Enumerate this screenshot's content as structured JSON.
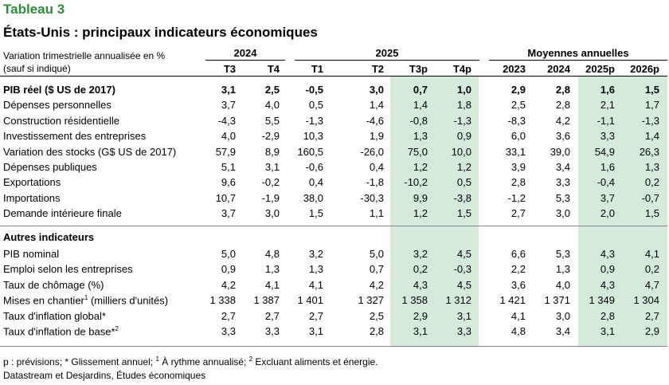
{
  "title": "Tableau 3",
  "subtitle": "États-Unis : principaux indicateurs économiques",
  "header_note_line1": "Variation trimestrielle annualisée en %",
  "header_note_line2": "(sauf si indiqué)",
  "groups": {
    "y2024": "2024",
    "y2025": "2025",
    "annual": "Moyennes annuelles"
  },
  "columns": [
    "T3",
    "T4",
    "T1",
    "T2",
    "T3p",
    "T4p",
    "2023",
    "2024",
    "2025p",
    "2026p"
  ],
  "section_other": "Autres indicateurs",
  "rows": [
    {
      "label": "PIB réel ($ US de 2017)",
      "bold": true,
      "values": [
        "3,1",
        "2,5",
        "-0,5",
        "3,0",
        "0,7",
        "1,0",
        "2,9",
        "2,8",
        "1,6",
        "1,5"
      ]
    },
    {
      "label": "Dépenses personnelles",
      "values": [
        "3,7",
        "4,0",
        "0,5",
        "1,4",
        "1,4",
        "1,8",
        "2,5",
        "2,8",
        "2,1",
        "1,7"
      ]
    },
    {
      "label": "Construction résidentielle",
      "values": [
        "-4,3",
        "5,5",
        "-1,3",
        "-4,6",
        "-0,8",
        "-1,3",
        "-8,3",
        "4,2",
        "-1,1",
        "-1,3"
      ]
    },
    {
      "label": "Investissement des entreprises",
      "values": [
        "4,0",
        "-2,9",
        "10,3",
        "1,9",
        "1,3",
        "0,9",
        "6,0",
        "3,6",
        "3,3",
        "1,4"
      ]
    },
    {
      "label": "Variation des stocks (G$ US de 2017)",
      "values": [
        "57,9",
        "8,9",
        "160,5",
        "-26,0",
        "75,0",
        "10,0",
        "33,1",
        "39,0",
        "54,9",
        "26,3"
      ]
    },
    {
      "label": "Dépenses publiques",
      "values": [
        "5,1",
        "3,1",
        "-0,6",
        "0,4",
        "1,2",
        "1,2",
        "3,9",
        "3,4",
        "1,6",
        "1,3"
      ]
    },
    {
      "label": "Exportations",
      "values": [
        "9,6",
        "-0,2",
        "0,4",
        "-1,8",
        "-10,2",
        "0,5",
        "2,8",
        "3,3",
        "-0,4",
        "0,2"
      ]
    },
    {
      "label": "Importations",
      "values": [
        "10,7",
        "-1,9",
        "38,0",
        "-30,3",
        "9,9",
        "-3,8",
        "-1,2",
        "5,3",
        "3,7",
        "-0,7"
      ]
    },
    {
      "label": "Demande intérieure finale",
      "values": [
        "3,7",
        "3,0",
        "1,5",
        "1,1",
        "1,2",
        "1,5",
        "2,7",
        "3,0",
        "2,0",
        "1,5"
      ]
    }
  ],
  "other_rows": [
    {
      "label": "PIB nominal",
      "values": [
        "5,0",
        "4,8",
        "3,2",
        "5,0",
        "3,2",
        "4,5",
        "6,6",
        "5,3",
        "4,3",
        "4,1"
      ]
    },
    {
      "label": "Emploi selon les entreprises",
      "values": [
        "0,9",
        "1,3",
        "1,3",
        "0,7",
        "0,2",
        "-0,3",
        "2,2",
        "1,3",
        "0,9",
        "0,2"
      ]
    },
    {
      "label": "Taux de chômage (%)",
      "values": [
        "4,2",
        "4,1",
        "4,1",
        "4,2",
        "4,3",
        "4,5",
        "3,6",
        "4,0",
        "4,3",
        "4,7"
      ]
    },
    {
      "label": "Mises en chantier",
      "sup": "1",
      "label_suffix": " (milliers d'unités)",
      "values": [
        "1 338",
        "1 387",
        "1 401",
        "1 327",
        "1 358",
        "1 312",
        "1 421",
        "1 371",
        "1 349",
        "1 304"
      ]
    },
    {
      "label": "Taux d'inflation global*",
      "values": [
        "2,7",
        "2,7",
        "2,7",
        "2,5",
        "2,9",
        "3,1",
        "4,1",
        "3,0",
        "2,8",
        "2,7"
      ]
    },
    {
      "label": "Taux d'inflation de base*",
      "sup": "2",
      "label_suffix": "",
      "values": [
        "3,3",
        "3,3",
        "3,1",
        "2,8",
        "3,1",
        "3,3",
        "4,8",
        "3,4",
        "3,1",
        "2,9"
      ]
    }
  ],
  "footnote": {
    "part1": "p : prévisions; * Glissement annuel; ",
    "sup1": "1",
    "part2": " À rythme annualisé; ",
    "sup2": "2",
    "part3": " Excluant aliments et énergie."
  },
  "source": "Datastream et Desjardins, Études économiques",
  "colors": {
    "title": "#2e8b3a",
    "shade": "#d4eadb"
  }
}
